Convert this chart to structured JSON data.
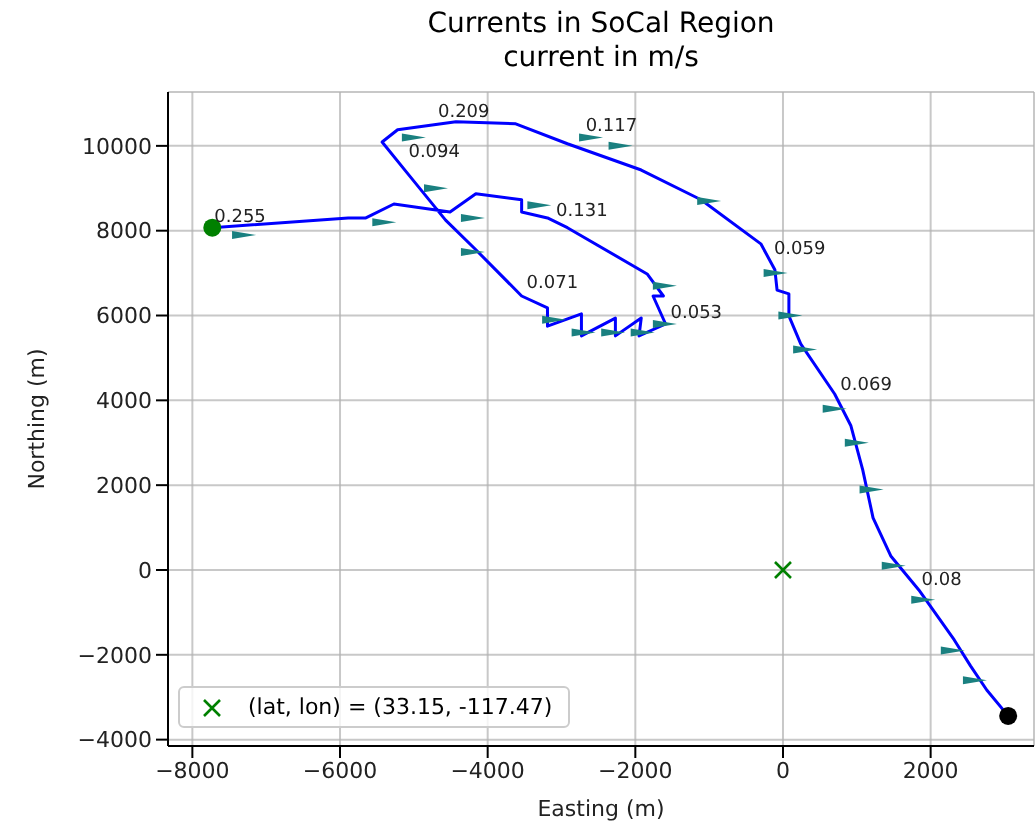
{
  "chart_data": {
    "type": "line",
    "title": "Currents in SoCal Region",
    "subtitle": "current in m/s",
    "xlabel": "Easting (m)",
    "ylabel": "Northing (m)",
    "xlim": [
      -8330,
      3400
    ],
    "xticks": [
      -8000,
      -6000,
      -4000,
      -2000,
      0,
      2000
    ],
    "ylim": [
      -4150,
      11270
    ],
    "yticks": [
      -4000,
      -2000,
      0,
      2000,
      4000,
      6000,
      8000,
      10000
    ],
    "grid": true,
    "legend": "bottom left",
    "series": [
      {
        "color": "#0000ff",
        "marker": "none",
        "x": [
          -7730,
          -5890,
          -5650,
          -5270,
          -4510,
          -4160,
          -3540,
          -3540,
          -3190,
          -2920,
          -1840,
          -1620,
          -1760,
          -1590,
          -1950,
          -1920,
          -2270,
          -2270,
          -2730,
          -2730,
          -3190,
          -3190,
          -3540,
          -4160,
          -4570,
          -5080,
          -5430,
          -5220,
          -4430,
          -3620,
          -2920,
          -1920,
          -1110,
          -300,
          -110,
          -80,
          80,
          80,
          240,
          700,
          920,
          1080,
          1220,
          1460,
          1840,
          2320,
          2540,
          2760,
          3050
        ],
        "values": [
          8070,
          8300,
          8300,
          8630,
          8440,
          8870,
          8730,
          8440,
          8300,
          8070,
          6980,
          6460,
          6460,
          5800,
          5520,
          5940,
          5520,
          5940,
          5520,
          6040,
          5750,
          6180,
          6460,
          7550,
          8250,
          9340,
          10090,
          10380,
          10570,
          10520,
          10050,
          9430,
          8730,
          7690,
          7080,
          6600,
          6510,
          5990,
          5330,
          4150,
          3400,
          2360,
          1230,
          330,
          -470,
          -1650,
          -2260,
          -2830,
          -3440
        ]
      },
      {
        "type": "scatter",
        "color": "#1a8080",
        "marker": "triangle",
        "x": [
          -7300,
          -5400,
          -5000,
          -4700,
          -4200,
          -3300,
          -2600,
          -1600,
          -1600,
          -1900,
          -2300,
          -2700,
          -3100,
          -4200,
          -2200,
          -1000,
          -100,
          100,
          300,
          700,
          1000,
          1200,
          1500,
          1900,
          2300,
          2600
        ],
        "values": [
          7900,
          8200,
          10200,
          9000,
          8300,
          8600,
          10200,
          6700,
          5800,
          5600,
          5600,
          5600,
          5900,
          7500,
          10000,
          8700,
          7000,
          6000,
          5200,
          3800,
          3000,
          1900,
          100,
          -700,
          -1900,
          -2600
        ]
      },
      {
        "type": "scatter",
        "color": "#008000",
        "marker": "circle",
        "x": [
          -7730
        ],
        "values": [
          8070
        ]
      },
      {
        "type": "scatter",
        "color": "#000000",
        "marker": "circle",
        "x": [
          3050
        ],
        "values": [
          -3440
        ]
      },
      {
        "type": "scatter",
        "name": "(lat, lon) = (33.15, -117.47)",
        "color": "#008000",
        "marker": "cross",
        "x": [
          0
        ],
        "values": [
          0
        ]
      }
    ],
    "annotations": [
      {
        "text": "0.255",
        "x": -7730,
        "y": 8070
      },
      {
        "text": "0.209",
        "x": -4700,
        "y": 10550
      },
      {
        "text": "0.117",
        "x": -2700,
        "y": 10200
      },
      {
        "text": "0.094",
        "x": -5100,
        "y": 9600
      },
      {
        "text": "0.131",
        "x": -3100,
        "y": 8200
      },
      {
        "text": "0.071",
        "x": -3500,
        "y": 6500
      },
      {
        "text": "0.053",
        "x": -1550,
        "y": 5800
      },
      {
        "text": "0.059",
        "x": -150,
        "y": 7300
      },
      {
        "text": "0.069",
        "x": 750,
        "y": 4100
      },
      {
        "text": "0.08",
        "x": 1850,
        "y": -500
      }
    ]
  }
}
